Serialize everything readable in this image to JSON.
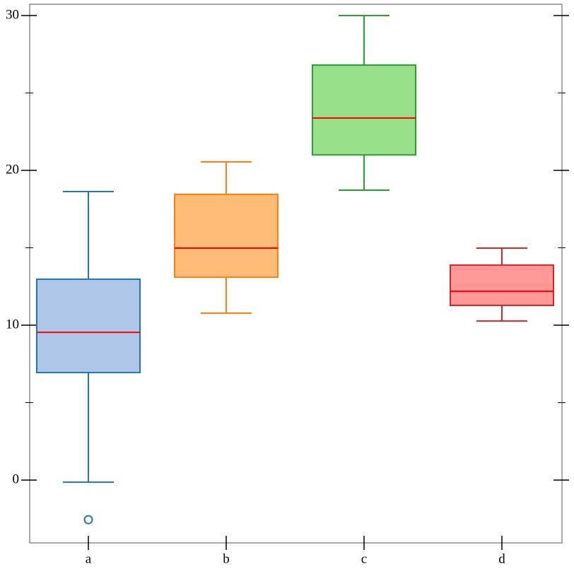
{
  "chart_data": {
    "type": "box",
    "categories": [
      "a",
      "b",
      "c",
      "d"
    ],
    "boxes": [
      {
        "color": "#1f77b4",
        "fill": "#aec7e8",
        "whislo": -0.14,
        "q1": 6.94,
        "med": 9.54,
        "q3": 12.97,
        "whishi": 18.63,
        "fliers": [
          -2.56
        ]
      },
      {
        "color": "#ff7f0e",
        "fill": "#ffbb78",
        "whislo": 10.78,
        "q1": 13.1,
        "med": 14.98,
        "q3": 18.45,
        "whishi": 20.55,
        "fliers": []
      },
      {
        "color": "#2ca02c",
        "fill": "#98df8a",
        "whislo": 18.72,
        "q1": 21.0,
        "med": 23.38,
        "q3": 26.8,
        "whishi": 30.0,
        "fliers": []
      },
      {
        "color": "#d62728",
        "fill": "#ff9896",
        "whislo": 10.27,
        "q1": 11.28,
        "med": 12.19,
        "q3": 13.88,
        "whishi": 14.98,
        "fliers": []
      }
    ],
    "median_color": "#ff0000",
    "ylim": [
      -4.06,
      30.73
    ],
    "yticks": [
      0,
      10,
      20,
      30
    ],
    "yminorticks": [
      5,
      15,
      25
    ]
  }
}
